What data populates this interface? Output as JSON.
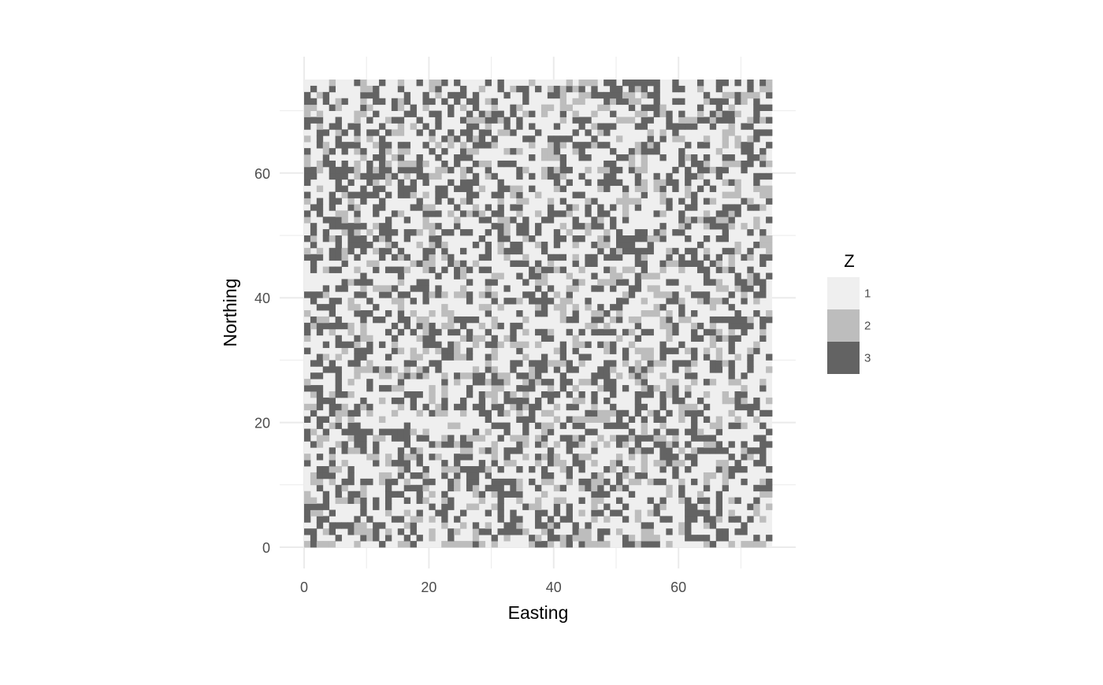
{
  "chart_data": {
    "type": "heatmap",
    "xlabel": "Easting",
    "ylabel": "Northing",
    "xlim": [
      0,
      75
    ],
    "ylim": [
      0,
      75
    ],
    "x_ticks": [
      0,
      20,
      40,
      60
    ],
    "y_ticks": [
      0,
      20,
      40,
      60
    ],
    "grid_size": [
      75,
      75
    ],
    "grid": true,
    "legend": {
      "title": "Z",
      "position": "right",
      "entries": [
        {
          "label": "1",
          "color": "#efefef"
        },
        {
          "label": "2",
          "color": "#bdbdbd"
        },
        {
          "label": "3",
          "color": "#636363"
        }
      ]
    },
    "value_proportions": {
      "1": 0.52,
      "2": 0.17,
      "3": 0.31
    },
    "background": "#ffffff",
    "grid_color": "#ebebeb"
  }
}
